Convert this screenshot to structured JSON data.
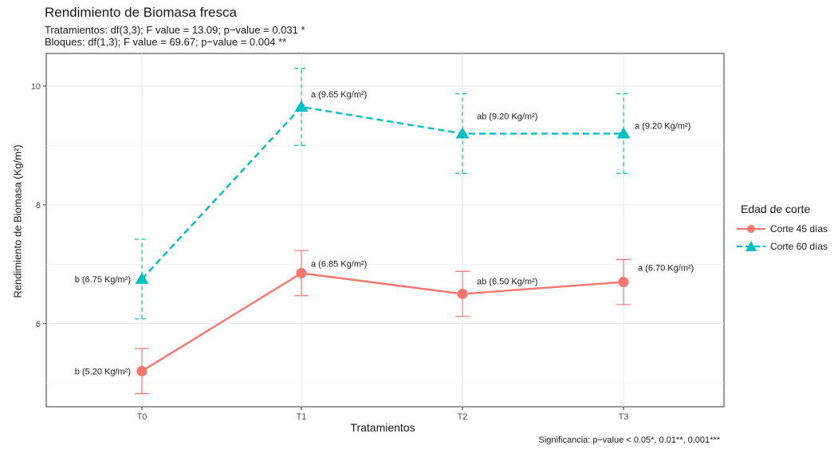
{
  "chart_data": {
    "type": "line",
    "title": "Rendimiento de Biomasa fresca",
    "subtitle_lines": [
      "Tratamientos: df(3,3); F value = 13.09; p−value = 0.031 *",
      "Bloques: df(1,3); F value = 69.67; p−value = 0.004 **"
    ],
    "xlabel": "Tratamientos",
    "ylabel": "Rendimiento de Biomasa (Kg/m²)",
    "caption": "Significancia: p−value < 0.05*, 0.01**, 0.001***",
    "categories": [
      "T0",
      "T1",
      "T2",
      "T3"
    ],
    "ylim": [
      4.6,
      10.55
    ],
    "y_ticks": [
      6,
      8,
      10
    ],
    "y_tick_labels": [
      "6",
      "8",
      "10"
    ],
    "grid": true,
    "legend": {
      "title": "Edad de corte",
      "placement": "right"
    },
    "series": [
      {
        "name": "Corte 45 días",
        "color": "#F8766D",
        "marker": "circle",
        "line_style": "solid",
        "values": [
          5.2,
          6.85,
          6.5,
          6.7
        ],
        "error_low": [
          4.82,
          6.47,
          6.12,
          6.32
        ],
        "error_high": [
          5.58,
          7.23,
          6.88,
          7.08
        ],
        "labels": [
          "b (5.20 Kg/m²)",
          "a (6.85 Kg/m²)",
          "ab (6.50 Kg/m²)",
          "a (6.70 Kg/m²)"
        ]
      },
      {
        "name": "Corte 60 días",
        "color": "#00BFC4",
        "marker": "triangle",
        "line_style": "dashed",
        "values": [
          6.75,
          9.65,
          9.2,
          9.2
        ],
        "error_low": [
          6.08,
          9.0,
          8.53,
          8.53
        ],
        "error_high": [
          7.42,
          10.3,
          9.87,
          9.87
        ],
        "labels": [
          "b (6.75 Kg/m²)",
          "a (9.65 Kg/m²)",
          "ab (9.20 Kg/m²)",
          "a (9.20 Kg/m²)"
        ]
      }
    ]
  }
}
